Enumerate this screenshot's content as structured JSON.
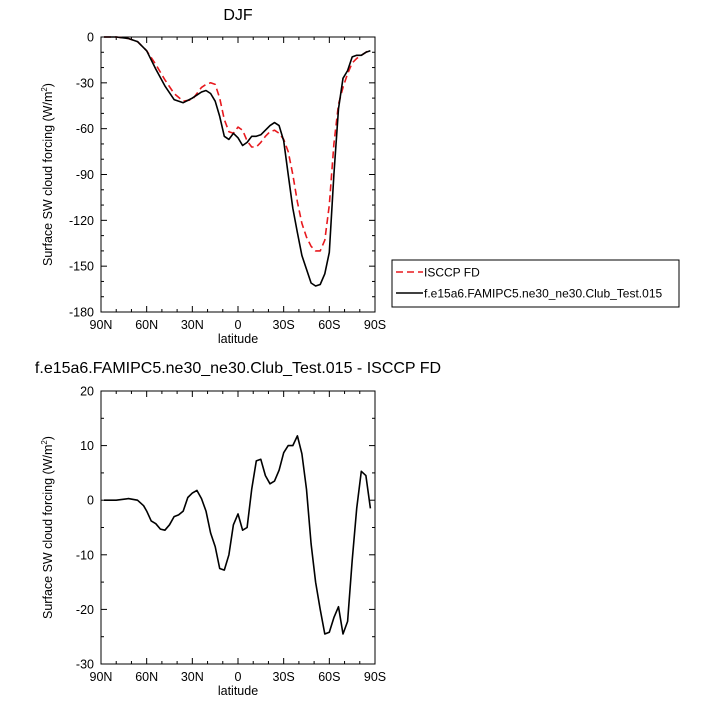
{
  "chart_data": [
    {
      "type": "line",
      "title": "DJF",
      "xlabel": "latitude",
      "ylabel": "Surface SW cloud forcing (W/m",
      "ylabel_sup": "2",
      "ylabel_close": ")",
      "xlim": [
        90,
        -90
      ],
      "ylim": [
        -180,
        0
      ],
      "x_ticks": [
        90,
        60,
        30,
        0,
        -30,
        -60,
        -90
      ],
      "x_tick_labels": [
        "90N",
        "60N",
        "30N",
        "0",
        "30S",
        "60S",
        "90S"
      ],
      "y_ticks": [
        0,
        -30,
        -60,
        -90,
        -120,
        -150,
        -180
      ],
      "y_tick_labels": [
        "0",
        "-30",
        "-60",
        "-90",
        "-120",
        "-150",
        "-180"
      ],
      "legend": {
        "position": "right-outside",
        "entries": [
          "ISCCP FD",
          "f.e15a6.FAMIPC5.ne30_ne30.Club_Test.015"
        ]
      },
      "series": [
        {
          "name": "ISCCP FD",
          "color": "#e8191e",
          "dash": true,
          "x": [
            88,
            80,
            72,
            66,
            60,
            54,
            48,
            42,
            36,
            30,
            27,
            24,
            21,
            18,
            15,
            12,
            9,
            6,
            3,
            0,
            -3,
            -6,
            -9,
            -12,
            -15,
            -18,
            -21,
            -24,
            -27,
            -30,
            -33,
            -36,
            -39,
            -42,
            -45,
            -48,
            -51,
            -54,
            -57,
            -60,
            -63,
            -66,
            -69,
            -72,
            -75,
            -78,
            -81,
            -84,
            -87
          ],
          "y": [
            0,
            0,
            -1,
            -3,
            -9,
            -18,
            -28,
            -37,
            -42,
            -41,
            -37,
            -33,
            -31,
            -30,
            -31,
            -40,
            -54,
            -62,
            -63,
            -59,
            -61,
            -68,
            -72,
            -72,
            -69,
            -65,
            -62,
            -61,
            -63,
            -67,
            -75,
            -90,
            -108,
            -122,
            -131,
            -137,
            -140,
            -140,
            -133,
            -110,
            -70,
            -44,
            -33,
            -24,
            -17,
            -14,
            -12,
            -10,
            -8
          ]
        },
        {
          "name": "f.e15a6.FAMIPC5.ne30_ne30.Club_Test.015",
          "color": "#000000",
          "dash": false,
          "x": [
            88,
            80,
            72,
            66,
            60,
            54,
            48,
            42,
            36,
            30,
            27,
            24,
            21,
            18,
            15,
            12,
            9,
            6,
            3,
            0,
            -3,
            -6,
            -9,
            -12,
            -15,
            -18,
            -21,
            -24,
            -27,
            -30,
            -33,
            -36,
            -39,
            -42,
            -45,
            -48,
            -51,
            -54,
            -57,
            -60,
            -63,
            -66,
            -69,
            -72,
            -75,
            -78,
            -81,
            -84,
            -87
          ],
          "y": [
            0,
            0,
            -1,
            -3,
            -9,
            -21,
            -32,
            -41,
            -43,
            -40,
            -38,
            -36,
            -35,
            -37,
            -42,
            -52,
            -65,
            -67,
            -63,
            -66,
            -71,
            -69,
            -65,
            -65,
            -64,
            -61,
            -58,
            -56,
            -58,
            -68,
            -90,
            -112,
            -128,
            -143,
            -152,
            -161,
            -163,
            -162,
            -155,
            -141,
            -90,
            -47,
            -27,
            -22,
            -13,
            -12,
            -12,
            -10,
            -9
          ]
        }
      ]
    },
    {
      "type": "line",
      "title": "f.e15a6.FAMIPC5.ne30_ne30.Club_Test.015 - ISCCP FD",
      "xlabel": "latitude",
      "ylabel": "Surface SW cloud forcing (W/m",
      "ylabel_sup": "2",
      "ylabel_close": ")",
      "xlim": [
        90,
        -90
      ],
      "ylim": [
        -30,
        20
      ],
      "x_ticks": [
        90,
        60,
        30,
        0,
        -30,
        -60,
        -90
      ],
      "x_tick_labels": [
        "90N",
        "60N",
        "30N",
        "0",
        "30S",
        "60S",
        "90S"
      ],
      "y_ticks": [
        20,
        10,
        0,
        -10,
        -20,
        -30
      ],
      "y_tick_labels": [
        "20",
        "10",
        "0",
        "-10",
        "-20",
        "-30"
      ],
      "series": [
        {
          "color": "#000000",
          "dash": false,
          "x": [
            88,
            80,
            72,
            66,
            62,
            60,
            57,
            54,
            51,
            48,
            45,
            42,
            39,
            36,
            33,
            30,
            27,
            24,
            21,
            18,
            15,
            12,
            9,
            6,
            3,
            0,
            -3,
            -6,
            -9,
            -12,
            -15,
            -18,
            -21,
            -24,
            -27,
            -30,
            -33,
            -36,
            -39,
            -42,
            -45,
            -48,
            -51,
            -54,
            -57,
            -60,
            -63,
            -66,
            -69,
            -72,
            -75,
            -78,
            -81,
            -84,
            -87
          ],
          "y": [
            0,
            0,
            0.3,
            0,
            -1,
            -2,
            -3.8,
            -4.3,
            -5.3,
            -5.5,
            -4.5,
            -3,
            -2.7,
            -2,
            0.5,
            1.3,
            1.8,
            0.3,
            -2,
            -6,
            -8.5,
            -12.5,
            -12.8,
            -10,
            -4.5,
            -2.5,
            -5.5,
            -5,
            2,
            7.2,
            7.5,
            4.5,
            3,
            3.5,
            5.5,
            8.7,
            10,
            10,
            11.8,
            8.5,
            2,
            -8,
            -15,
            -20,
            -24.5,
            -24.2,
            -21.5,
            -19.5,
            -24.5,
            -22.2,
            -11,
            -1.5,
            5.3,
            4.5,
            -1.5
          ]
        }
      ]
    }
  ]
}
